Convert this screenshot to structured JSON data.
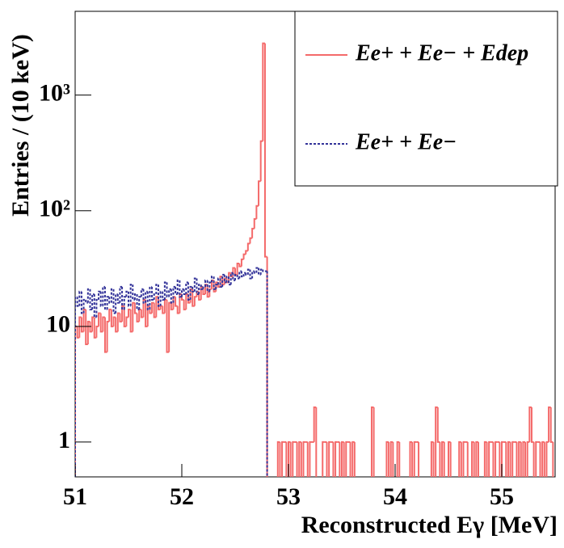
{
  "chart_data": {
    "type": "histogram",
    "ylabel": "Entries / (10 keV)",
    "xlabel": "Reconstructed  Eγ [MeV]",
    "xlim": [
      51,
      55.5
    ],
    "ylim": [
      0.5,
      5300
    ],
    "log_y": true,
    "xticks": [
      51,
      52,
      53,
      54,
      55
    ],
    "yticks": [
      1,
      10,
      {
        "value": 100,
        "label": "10²"
      },
      {
        "value": 1000,
        "label": "10³"
      }
    ],
    "legend": "upper right",
    "bins": [
      51,
      51.02,
      51.04,
      51.06,
      51.08,
      51.1,
      51.12,
      51.14,
      51.16,
      51.18,
      51.2,
      51.22,
      51.24,
      51.26,
      51.28,
      51.3,
      51.32,
      51.34,
      51.36,
      51.38,
      51.4,
      51.42,
      51.44,
      51.46,
      51.48,
      51.5,
      51.52,
      51.54,
      51.56,
      51.58,
      51.6,
      51.62,
      51.64,
      51.66,
      51.68,
      51.7,
      51.72,
      51.74,
      51.76,
      51.78,
      51.8,
      51.82,
      51.84,
      51.86,
      51.88,
      51.9,
      51.92,
      51.94,
      51.96,
      51.98,
      52,
      52.02,
      52.04,
      52.06,
      52.08,
      52.1,
      52.12,
      52.14,
      52.16,
      52.18,
      52.2,
      52.22,
      52.24,
      52.26,
      52.28,
      52.3,
      52.32,
      52.34,
      52.36,
      52.38,
      52.4,
      52.42,
      52.44,
      52.46,
      52.48,
      52.5,
      52.52,
      52.54,
      52.56,
      52.58,
      52.6,
      52.62,
      52.64,
      52.66,
      52.68,
      52.7,
      52.72,
      52.74,
      52.76,
      52.78,
      52.8,
      52.82,
      52.84,
      52.86,
      52.88,
      52.9,
      52.92,
      52.94,
      52.96,
      52.98,
      53,
      53.02,
      53.04,
      53.06,
      53.08,
      53.1,
      53.12,
      53.14,
      53.16,
      53.18,
      53.2,
      53.22,
      53.24,
      53.26,
      53.28,
      53.3,
      53.32,
      53.34,
      53.36,
      53.38,
      53.4,
      53.42,
      53.44,
      53.46,
      53.48,
      53.5,
      53.52,
      53.54,
      53.56,
      53.58,
      53.6,
      53.62,
      53.64,
      53.66,
      53.68,
      53.7,
      53.72,
      53.74,
      53.76,
      53.78,
      53.8,
      53.82,
      53.84,
      53.86,
      53.88,
      53.9,
      53.92,
      53.94,
      53.96,
      53.98,
      54,
      54.02,
      54.04,
      54.06,
      54.08,
      54.1,
      54.12,
      54.14,
      54.16,
      54.18,
      54.2,
      54.22,
      54.24,
      54.26,
      54.28,
      54.3,
      54.32,
      54.34,
      54.36,
      54.38,
      54.4,
      54.42,
      54.44,
      54.46,
      54.48,
      54.5,
      54.52,
      54.54,
      54.56,
      54.58,
      54.6,
      54.62,
      54.64,
      54.66,
      54.68,
      54.7,
      54.72,
      54.74,
      54.76,
      54.78,
      54.8,
      54.82,
      54.84,
      54.86,
      54.88,
      54.9,
      54.92,
      54.94,
      54.96,
      54.98,
      55,
      55.02,
      55.04,
      55.06,
      55.08,
      55.1,
      55.12,
      55.14,
      55.16,
      55.18,
      55.2,
      55.22,
      55.24,
      55.26,
      55.28,
      55.3,
      55.32,
      55.34,
      55.36,
      55.38,
      55.4,
      55.42,
      55.44,
      55.46,
      55.48,
      55.5
    ],
    "series": [
      {
        "name": "Ee+ + Ee− + Edep",
        "color": "#f46a6a",
        "dash": false,
        "values": [
          10,
          8,
          12,
          9,
          14,
          7,
          11,
          9,
          12,
          8,
          10,
          13,
          9,
          12,
          6,
          11,
          14,
          10,
          12,
          9,
          13,
          11,
          15,
          10,
          12,
          14,
          9,
          16,
          13,
          11,
          14,
          12,
          17,
          10,
          15,
          13,
          16,
          12,
          18,
          14,
          15,
          13,
          17,
          6,
          16,
          14,
          18,
          15,
          13,
          19,
          17,
          14,
          19,
          16,
          21,
          15,
          18,
          20,
          17,
          22,
          19,
          23,
          18,
          21,
          25,
          20,
          24,
          22,
          27,
          23,
          26,
          24,
          29,
          27,
          32,
          28,
          35,
          33,
          38,
          42,
          45,
          52,
          58,
          70,
          85,
          110,
          180,
          400,
          2800,
          40,
          0,
          0,
          0,
          0,
          0,
          1,
          0,
          1,
          1,
          0,
          1,
          0,
          1,
          1,
          0,
          1,
          0,
          1,
          1,
          0,
          1,
          1,
          2,
          0,
          0,
          0,
          1,
          1,
          0,
          1,
          1,
          0,
          1,
          1,
          0,
          1,
          0,
          1,
          1,
          0,
          1,
          0,
          0,
          0,
          0,
          0,
          0,
          0,
          0,
          2,
          0,
          0,
          0,
          0,
          0,
          0,
          1,
          0,
          1,
          0,
          0,
          1,
          0,
          0,
          0,
          0,
          0,
          1,
          0,
          1,
          1,
          0,
          0,
          0,
          0,
          0,
          0,
          1,
          0,
          2,
          1,
          0,
          1,
          0,
          0,
          1,
          0,
          0,
          0,
          0,
          1,
          0,
          1,
          1,
          0,
          0,
          1,
          0,
          1,
          0,
          0,
          0,
          1,
          0,
          1,
          1,
          0,
          1,
          1,
          0,
          1,
          1,
          0,
          1,
          0,
          1,
          1,
          0,
          1,
          0,
          1,
          0,
          1,
          2,
          1,
          0,
          1,
          1,
          0,
          1,
          0,
          1,
          2,
          1,
          0
        ]
      },
      {
        "name": "Ee+ + Ee−",
        "color": "#333399",
        "dash": true,
        "values": [
          18,
          15,
          20,
          13,
          17,
          16,
          21,
          14,
          19,
          12,
          17,
          20,
          15,
          22,
          14,
          18,
          16,
          21,
          13,
          19,
          16,
          22,
          14,
          18,
          20,
          15,
          23,
          17,
          19,
          14,
          18,
          21,
          16,
          20,
          14,
          22,
          17,
          19,
          23,
          15,
          20,
          17,
          24,
          18,
          21,
          16,
          22,
          19,
          25,
          18,
          21,
          19,
          24,
          17,
          22,
          20,
          26,
          19,
          23,
          21,
          22,
          25,
          20,
          24,
          27,
          21,
          23,
          26,
          22,
          28,
          24,
          27,
          23,
          29,
          25,
          28,
          26,
          30,
          27,
          29,
          28,
          31,
          26,
          30,
          29,
          32,
          28,
          31,
          30,
          30,
          0,
          0,
          0,
          0,
          0,
          0,
          0,
          0,
          0,
          0,
          0,
          0,
          0,
          0,
          0,
          0,
          0,
          0,
          0,
          0,
          0,
          0,
          0,
          0,
          0,
          0,
          0,
          0,
          0,
          0,
          0,
          0,
          0,
          0,
          0,
          0,
          0,
          0,
          0,
          0,
          0,
          0,
          0,
          0,
          0,
          0,
          0,
          0,
          0,
          0,
          0,
          0,
          0,
          0,
          0,
          0,
          0,
          0,
          0,
          0,
          0,
          0,
          0,
          0,
          0,
          0,
          0,
          0,
          0,
          0,
          0,
          0,
          0,
          0,
          0,
          0,
          0,
          0,
          0,
          0,
          0,
          0,
          0,
          0,
          0,
          0,
          0,
          0,
          0,
          0,
          0,
          0,
          0,
          0,
          0,
          0,
          0,
          0,
          0,
          0,
          0,
          0,
          0,
          0,
          0,
          0,
          0,
          0,
          0,
          0,
          0,
          0,
          0,
          0,
          0,
          0,
          0,
          0,
          0,
          0,
          0,
          0,
          0,
          0,
          0,
          0,
          0,
          0,
          0,
          0,
          0,
          0,
          0,
          0,
          0
        ]
      }
    ]
  }
}
